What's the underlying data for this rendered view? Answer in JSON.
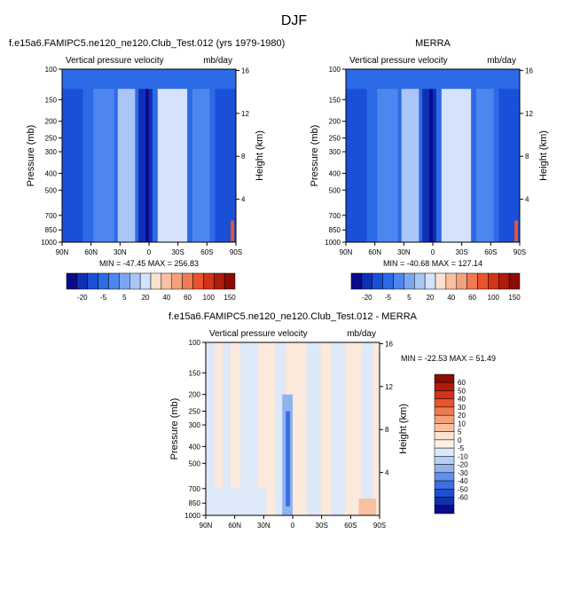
{
  "figure": {
    "title": "DJF"
  },
  "chart_data": [
    {
      "type": "heatmap",
      "title": "f.e15a6.FAMIPC5.ne120_ne120.Club_Test.012 (yrs 1979-1980)",
      "subtitle_left": "Vertical pressure velocity",
      "subtitle_right": "mb/day",
      "ylabel": "Pressure (mb)",
      "ylabel_right": "Height (km)",
      "x_ticks": [
        "90N",
        "60N",
        "30N",
        "0",
        "30S",
        "60S",
        "90S"
      ],
      "y_ticks": [
        "100",
        "150",
        "200",
        "250",
        "300",
        "400",
        "500",
        "700",
        "850",
        "1000"
      ],
      "y_ticks_right": [
        "16",
        "12",
        "8",
        "4"
      ],
      "stats": "MIN = -47.45   MAX = 256.83",
      "colorbar": {
        "labels": [
          "-20",
          "-5",
          "5",
          "20",
          "40",
          "60",
          "100",
          "150"
        ],
        "colors": [
          "#0a0a8c",
          "#0f2fb4",
          "#1a4fd8",
          "#2d6ae6",
          "#4d86ee",
          "#7aa6f2",
          "#a9c6f7",
          "#d4e3fb",
          "#fbe1cf",
          "#f8c2a0",
          "#f5a07a",
          "#f07a52",
          "#e8542e",
          "#d13416",
          "#b01c0a",
          "#8a0c04"
        ]
      }
    },
    {
      "type": "heatmap",
      "title": "MERRA",
      "subtitle_left": "Vertical pressure velocity",
      "subtitle_right": "mb/day",
      "ylabel": "Pressure (mb)",
      "ylabel_right": "Height (km)",
      "x_ticks": [
        "90N",
        "60N",
        "30N",
        "0",
        "30S",
        "60S",
        "90S"
      ],
      "y_ticks": [
        "100",
        "150",
        "200",
        "250",
        "300",
        "400",
        "500",
        "700",
        "850",
        "1000"
      ],
      "y_ticks_right": [
        "16",
        "12",
        "8",
        "4"
      ],
      "stats": "MIN = -40.68   MAX = 127.14",
      "colorbar": {
        "labels": [
          "-20",
          "-5",
          "5",
          "20",
          "40",
          "60",
          "100",
          "150"
        ],
        "colors": [
          "#0a0a8c",
          "#0f2fb4",
          "#1a4fd8",
          "#2d6ae6",
          "#4d86ee",
          "#7aa6f2",
          "#a9c6f7",
          "#d4e3fb",
          "#fbe1cf",
          "#f8c2a0",
          "#f5a07a",
          "#f07a52",
          "#e8542e",
          "#d13416",
          "#b01c0a",
          "#8a0c04"
        ]
      }
    },
    {
      "type": "heatmap",
      "title": "f.e15a6.FAMIPC5.ne120_ne120.Club_Test.012 - MERRA",
      "subtitle_left": "Vertical pressure velocity",
      "subtitle_right": "mb/day",
      "ylabel": "Pressure (mb)",
      "ylabel_right": "Height (km)",
      "x_ticks": [
        "90N",
        "60N",
        "30N",
        "0",
        "30S",
        "60S",
        "90S"
      ],
      "y_ticks": [
        "100",
        "150",
        "200",
        "250",
        "300",
        "400",
        "500",
        "700",
        "850",
        "1000"
      ],
      "y_ticks_right": [
        "16",
        "12",
        "8",
        "4"
      ],
      "stats": "MIN = -22.53   MAX =  51.49",
      "colorbar": {
        "labels": [
          "60",
          "50",
          "40",
          "30",
          "20",
          "10",
          "5",
          "0",
          "-5",
          "-10",
          "-20",
          "-30",
          "-40",
          "-50",
          "-60"
        ],
        "colors": [
          "#8a0c04",
          "#b01c0a",
          "#d13416",
          "#e8542e",
          "#f07a52",
          "#f5a07a",
          "#f8c2a0",
          "#fde3cf",
          "#fdf1e6",
          "#dde8f8",
          "#b9d0f5",
          "#8fb3ef",
          "#6391ea",
          "#3a6fe0",
          "#1e4fd2",
          "#1030b0",
          "#0a0a8c"
        ]
      }
    }
  ]
}
